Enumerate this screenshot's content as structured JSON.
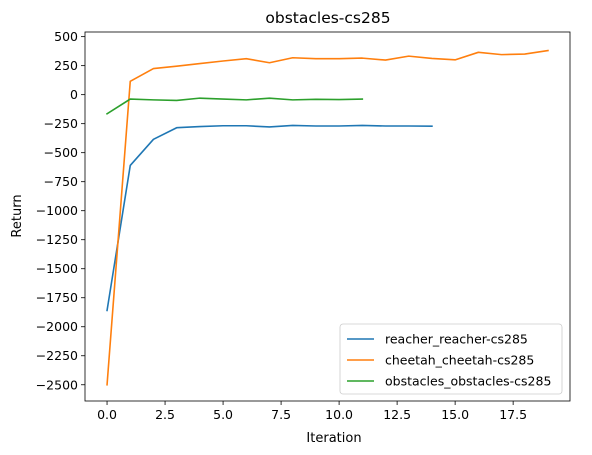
{
  "chart_data": {
    "type": "line",
    "title": "obstacles-cs285",
    "xlabel": "Iteration",
    "ylabel": "Return",
    "xlim": [
      -0.95,
      19.95
    ],
    "ylim": [
      -2640,
      540
    ],
    "x_ticks": [
      0,
      2.5,
      5,
      7.5,
      10,
      12.5,
      15,
      17.5
    ],
    "x_tick_labels": [
      "0.0",
      "2.5",
      "5.0",
      "7.5",
      "10.0",
      "12.5",
      "15.0",
      "17.5"
    ],
    "y_ticks": [
      500,
      250,
      0,
      -250,
      -500,
      -750,
      -1000,
      -1250,
      -1500,
      -1750,
      -2000,
      -2250,
      -2500
    ],
    "y_tick_labels": [
      "500",
      "250",
      "0",
      "−250",
      "−500",
      "−750",
      "−1000",
      "−1250",
      "−1500",
      "−1750",
      "−2000",
      "−2250",
      "−2500"
    ],
    "grid": false,
    "legend_position": "lower-right",
    "series": [
      {
        "name": "reacher_reacher-cs285",
        "color": "#1f77b4",
        "x": [
          0,
          1,
          2,
          3,
          4,
          5,
          6,
          7,
          8,
          9,
          10,
          11,
          12,
          13,
          14
        ],
        "values": [
          -1860,
          -610,
          -385,
          -285,
          -275,
          -268,
          -268,
          -278,
          -265,
          -270,
          -270,
          -265,
          -270,
          -270,
          -272
        ]
      },
      {
        "name": "cheetah_cheetah-cs285",
        "color": "#ff7f0e",
        "x": [
          0,
          1,
          2,
          3,
          4,
          5,
          6,
          7,
          8,
          9,
          10,
          11,
          12,
          13,
          14,
          15,
          16,
          17,
          18,
          19
        ],
        "values": [
          -2500,
          115,
          225,
          245,
          268,
          290,
          310,
          275,
          318,
          310,
          310,
          315,
          298,
          332,
          312,
          300,
          365,
          345,
          350,
          380
        ]
      },
      {
        "name": "obstacles_obstacles-cs285",
        "color": "#2ca02c",
        "x": [
          0,
          1,
          2,
          3,
          4,
          5,
          6,
          7,
          8,
          9,
          10,
          11
        ],
        "values": [
          -165,
          -38,
          -45,
          -50,
          -30,
          -38,
          -45,
          -30,
          -45,
          -40,
          -42,
          -38
        ]
      }
    ]
  }
}
